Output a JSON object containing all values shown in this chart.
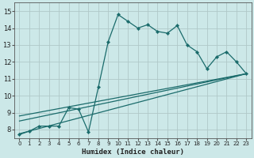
{
  "xlabel": "Humidex (Indice chaleur)",
  "bg_color": "#cce8e8",
  "grid_color": "#b0c8c8",
  "line_color": "#1a6b6b",
  "xlim": [
    -0.5,
    23.5
  ],
  "ylim": [
    7.5,
    15.5
  ],
  "xticks": [
    0,
    1,
    2,
    3,
    4,
    5,
    6,
    7,
    8,
    9,
    10,
    11,
    12,
    13,
    14,
    15,
    16,
    17,
    18,
    19,
    20,
    21,
    22,
    23
  ],
  "yticks": [
    8,
    9,
    10,
    11,
    12,
    13,
    14,
    15
  ],
  "main_x": [
    0,
    1,
    2,
    3,
    4,
    5,
    6,
    7,
    8,
    9,
    10,
    11,
    12,
    13,
    14,
    15,
    16,
    17,
    18,
    19,
    20,
    21,
    22,
    23
  ],
  "main_y": [
    7.7,
    7.9,
    8.2,
    8.2,
    8.2,
    9.3,
    9.2,
    7.85,
    10.5,
    13.2,
    14.8,
    14.4,
    14.0,
    14.2,
    13.8,
    13.7,
    14.15,
    13.0,
    12.6,
    11.6,
    12.3,
    12.6,
    12.0,
    11.3
  ],
  "line2_x": [
    0,
    23
  ],
  "line2_y": [
    7.75,
    11.3
  ],
  "line3_x": [
    0,
    23
  ],
  "line3_y": [
    8.5,
    11.3
  ],
  "line4_x": [
    0,
    23
  ],
  "line4_y": [
    8.8,
    11.3
  ]
}
